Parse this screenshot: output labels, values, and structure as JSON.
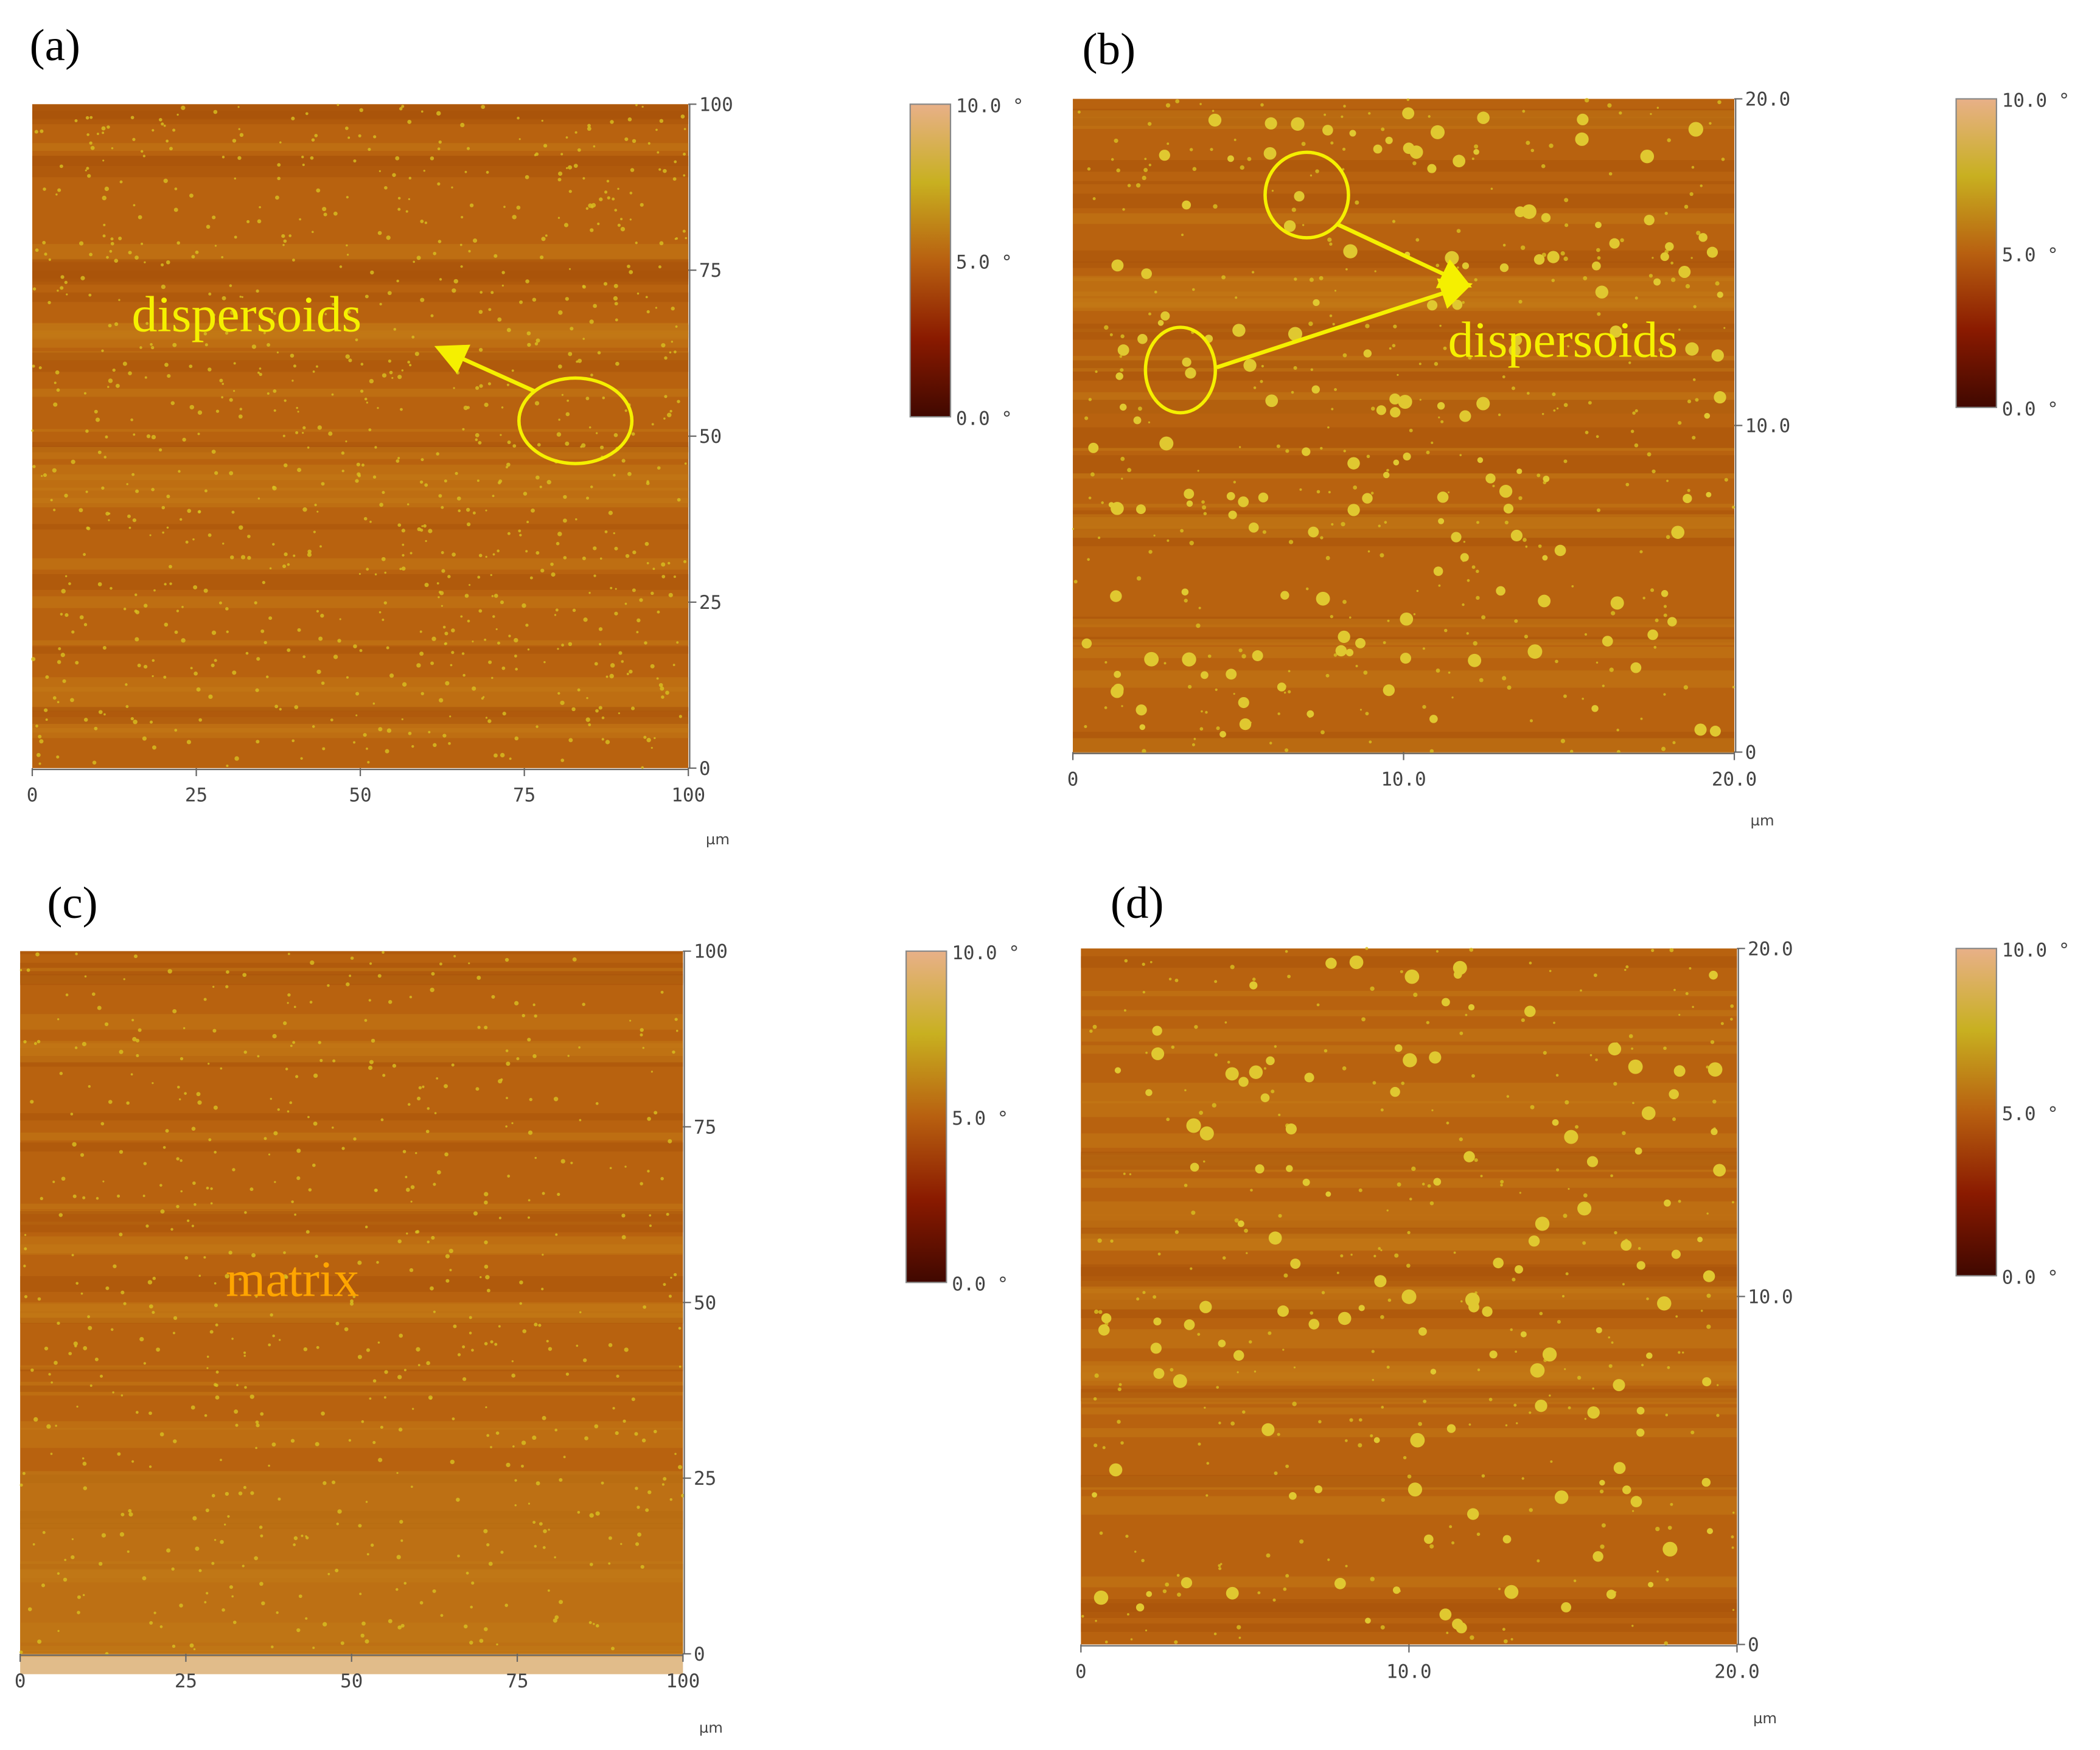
{
  "panels": [
    {
      "label": "(a)",
      "y_ticks": [
        "100",
        "75",
        "50",
        "25",
        "0"
      ],
      "x_ticks": [
        "0",
        "25",
        "50",
        "75",
        "100"
      ],
      "unit": "µm",
      "colorbar_ticks": [
        "10.0 °",
        "5.0 °",
        "0.0 °"
      ],
      "annotation": "dispersoids"
    },
    {
      "label": "(b)",
      "y_ticks": [
        "20.0",
        "10.0",
        "0"
      ],
      "x_ticks": [
        "0",
        "10.0",
        "20.0"
      ],
      "unit": "µm",
      "colorbar_ticks": [
        "10.0 °",
        "5.0 °",
        "0.0 °"
      ],
      "annotation": "dispersoids"
    },
    {
      "label": "(c)",
      "y_ticks": [
        "100",
        "75",
        "50",
        "25",
        "0"
      ],
      "x_ticks": [
        "0",
        "25",
        "50",
        "75",
        "100"
      ],
      "unit": "µm",
      "colorbar_ticks": [
        "10.0 °",
        "5.0 °",
        "0.0 °"
      ],
      "annotation": "matrix"
    },
    {
      "label": "(d)",
      "y_ticks": [
        "20.0",
        "10.0",
        "0"
      ],
      "x_ticks": [
        "0",
        "10.0",
        "20.0"
      ],
      "unit": "µm",
      "colorbar_ticks": [
        "10.0 °",
        "5.0 °",
        "0.0 °"
      ]
    }
  ]
}
